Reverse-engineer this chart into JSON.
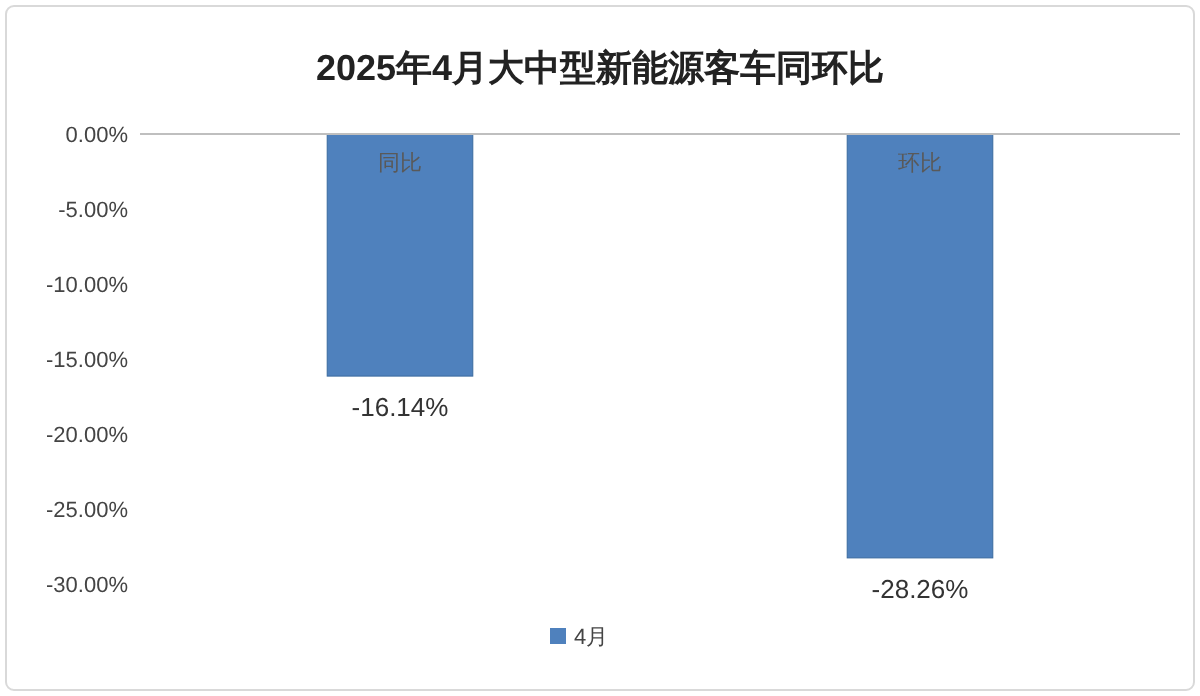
{
  "chart_data": {
    "type": "bar",
    "title": "2025年4月大中型新能源客车同环比",
    "categories": [
      "同比",
      "环比"
    ],
    "series": [
      {
        "name": "4月",
        "color": "#4f81bd",
        "values": [
          -16.14,
          -28.26
        ],
        "value_labels": [
          "-16.14%",
          "-28.26%"
        ]
      }
    ],
    "ylim": [
      -30,
      0
    ],
    "yticks": [
      {
        "value": 0,
        "label": "0.00%"
      },
      {
        "value": -5,
        "label": "-5.00%"
      },
      {
        "value": -10,
        "label": "-10.00%"
      },
      {
        "value": -15,
        "label": "-15.00%"
      },
      {
        "value": -20,
        "label": "-20.00%"
      },
      {
        "value": -25,
        "label": "-25.00%"
      },
      {
        "value": -30,
        "label": "-30.00%"
      }
    ],
    "legend": "bottom"
  }
}
